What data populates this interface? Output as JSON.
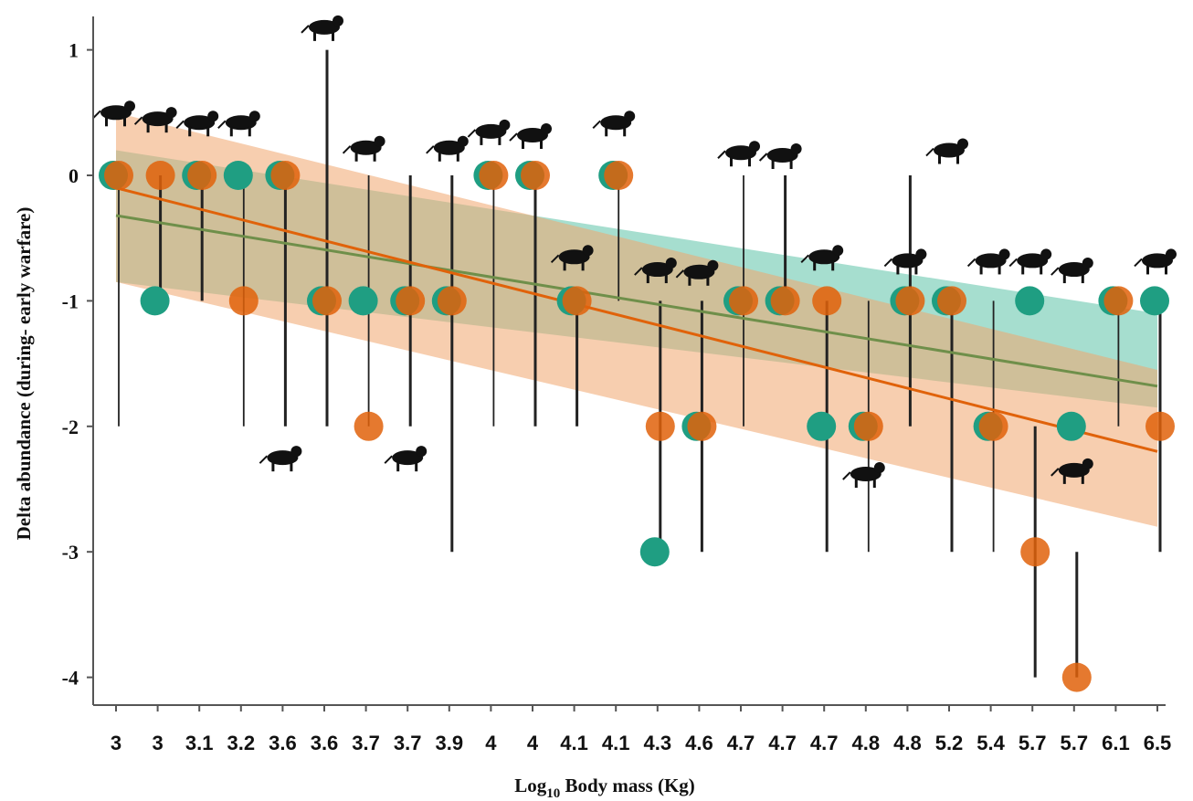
{
  "colors": {
    "teal": "#1f9e82",
    "orange": "#e0620a",
    "olive": "#6f8f4a",
    "teal_band": "#5cc3a8",
    "orange_band": "#f0a56e",
    "axis": "#555555"
  },
  "chart_data": {
    "type": "scatter",
    "title": "",
    "xlabel_main": "Log",
    "xlabel_sub": "10",
    "xlabel_rest": " Body mass (Kg)",
    "ylabel": "Delta abundance  (during- early warfare)",
    "ylim": [
      -4.2,
      1.3
    ],
    "yticks": [
      1,
      0,
      -1,
      -2,
      -3,
      -4
    ],
    "ytick_labels": [
      "1",
      "0",
      "-1",
      "-2",
      "-3",
      "-4"
    ],
    "categories": [
      "3",
      "3",
      "3.1",
      "3.2",
      "3.6",
      "3.6",
      "3.7",
      "3.7",
      "3.9",
      "4",
      "4",
      "4.1",
      "4.1",
      "4.3",
      "4.6",
      "4.7",
      "4.7",
      "4.7",
      "4.8",
      "4.8",
      "5.2",
      "5.4",
      "5.7",
      "5.7",
      "6.1",
      "6.5"
    ],
    "series": [
      {
        "values": [
          0,
          -1,
          0,
          0,
          0,
          -1,
          -1,
          -1,
          -1,
          0,
          0,
          -1,
          0,
          -3,
          -2,
          -1,
          -1,
          -2,
          -2,
          -1,
          -1,
          -2,
          -1,
          -2,
          -1,
          -1
        ]
      },
      {
        "values": [
          0,
          0,
          0,
          -1,
          0,
          -1,
          -2,
          -1,
          -1,
          0,
          0,
          -1,
          0,
          -2,
          -2,
          -1,
          -1,
          -1,
          -2,
          -1,
          -1,
          -2,
          -3,
          -4,
          -1,
          -2
        ]
      }
    ],
    "error_bars": [
      {
        "low": -2,
        "high": 0
      },
      {
        "low": -1,
        "high": 0
      },
      {
        "low": -1,
        "high": 0
      },
      {
        "low": -2,
        "high": 0
      },
      {
        "low": -2,
        "high": 0
      },
      {
        "low": -2,
        "high": 1
      },
      {
        "low": -2,
        "high": 0
      },
      {
        "low": -2,
        "high": 0
      },
      {
        "low": -3,
        "high": 0
      },
      {
        "low": -2,
        "high": 0
      },
      {
        "low": -2,
        "high": 0
      },
      {
        "low": -2,
        "high": -1
      },
      {
        "low": -1,
        "high": 0
      },
      {
        "low": -3,
        "high": -1
      },
      {
        "low": -3,
        "high": -1
      },
      {
        "low": -2,
        "high": 0
      },
      {
        "low": -1,
        "high": 0
      },
      {
        "low": -3,
        "high": -1
      },
      {
        "low": -3,
        "high": -1
      },
      {
        "low": -2,
        "high": 0
      },
      {
        "low": -3,
        "high": -1
      },
      {
        "low": -3,
        "high": -1
      },
      {
        "low": -4,
        "high": -2
      },
      {
        "low": -4,
        "high": -3
      },
      {
        "low": -2,
        "high": -1
      },
      {
        "low": -3,
        "high": -1
      }
    ],
    "fit_lines": [
      {
        "y_start": -0.32,
        "y_end": -1.68,
        "band_start": [
          -0.85,
          0.2
        ],
        "band_end": [
          -1.85,
          -1.1
        ]
      },
      {
        "y_start": -0.1,
        "y_end": -2.2,
        "band_start": [
          -0.85,
          0.5
        ],
        "band_end": [
          -2.8,
          -1.55
        ]
      }
    ],
    "silhouettes": [
      {
        "icon": "bushbaby-icon",
        "index": 0,
        "y": 0.5
      },
      {
        "icon": "monkey-small-icon",
        "index": 1,
        "y": 0.45
      },
      {
        "icon": "hare-icon",
        "index": 2,
        "y": 0.42
      },
      {
        "icon": "rodent-icon",
        "index": 3,
        "y": 0.42
      },
      {
        "icon": "vervet-monkey-icon",
        "index": 5,
        "y": 1.18
      },
      {
        "icon": "mongoose-icon",
        "index": 4,
        "y": -2.25
      },
      {
        "icon": "baboon-icon",
        "index": 6,
        "y": 0.22
      },
      {
        "icon": "jackal-small-icon",
        "index": 7,
        "y": -2.25
      },
      {
        "icon": "duiker-icon",
        "index": 8,
        "y": 0.22
      },
      {
        "icon": "jackal-icon",
        "index": 9,
        "y": 0.35
      },
      {
        "icon": "honey-badger-icon",
        "index": 10,
        "y": 0.32
      },
      {
        "icon": "porcupine-icon",
        "index": 12,
        "y": 0.42
      },
      {
        "icon": "bushbuck-icon",
        "index": 11,
        "y": -0.65
      },
      {
        "icon": "wild-dog-icon",
        "index": 13,
        "y": -0.75
      },
      {
        "icon": "reedbuck-icon",
        "index": 14,
        "y": -0.77
      },
      {
        "icon": "leopard-icon",
        "index": 15,
        "y": 0.18
      },
      {
        "icon": "aardvark-icon",
        "index": 16,
        "y": 0.16
      },
      {
        "icon": "impala-icon",
        "index": 17,
        "y": -0.65
      },
      {
        "icon": "hyena-icon",
        "index": 18,
        "y": -2.38
      },
      {
        "icon": "warthog-icon",
        "index": 19,
        "y": -0.68
      },
      {
        "icon": "lion-icon",
        "index": 20,
        "y": 0.2
      },
      {
        "icon": "sable-icon",
        "index": 21,
        "y": -0.68
      },
      {
        "icon": "kudu-icon",
        "index": 22,
        "y": -0.68
      },
      {
        "icon": "buffalo-icon",
        "index": 23,
        "y": -0.75
      },
      {
        "icon": "hippo-icon",
        "index": 23,
        "y": -2.35
      },
      {
        "icon": "elephant-icon",
        "index": 25,
        "y": -0.68
      }
    ]
  }
}
